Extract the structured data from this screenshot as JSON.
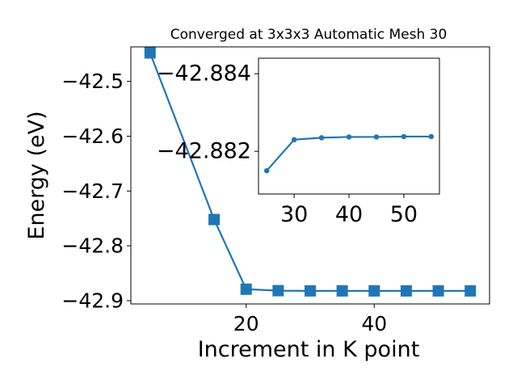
{
  "chart_data": [
    {
      "type": "line",
      "title": "Converged at 3x3x3 Automatic Mesh 30",
      "xlabel": "Increment in K point",
      "ylabel": "Energy (eV)",
      "xlim": [
        2,
        58
      ],
      "ylim": [
        -42.906,
        -42.437
      ],
      "x_ticks": [
        20,
        40
      ],
      "x_tick_labels": [
        "20",
        "40"
      ],
      "y_ticks": [
        -42.5,
        -42.6,
        -42.7,
        -42.8,
        -42.9
      ],
      "y_tick_labels": [
        "−42.5",
        "−42.6",
        "−42.7",
        "−42.8",
        "−42.9"
      ],
      "grid": false,
      "marker": "square",
      "color": "#1f77b4",
      "series": [
        {
          "x": [
            5,
            15,
            20,
            25,
            30,
            35,
            40,
            45,
            50,
            55
          ],
          "values": [
            -42.448,
            -42.752,
            -42.8791,
            -42.8818,
            -42.8822,
            -42.8822,
            -42.8822,
            -42.8822,
            -42.8822,
            -42.8822
          ]
        }
      ]
    },
    {
      "type": "line",
      "title": "",
      "xlabel": "",
      "ylabel": "",
      "xlim": [
        23.5,
        56.5
      ],
      "ylim": [
        -42.8809,
        -42.8844
      ],
      "x_ticks": [
        30,
        40,
        50
      ],
      "x_tick_labels": [
        "30",
        "40",
        "50"
      ],
      "y_ticks": [
        -42.884,
        -42.882
      ],
      "y_tick_labels": [
        "−42.884",
        "−42.882"
      ],
      "grid": false,
      "marker": "circle",
      "color": "#1f77b4",
      "series": [
        {
          "x": [
            25,
            30,
            35,
            40,
            45,
            50,
            55
          ],
          "values": [
            -42.8815,
            -42.8823,
            -42.88235,
            -42.88237,
            -42.88237,
            -42.88238,
            -42.88238
          ]
        }
      ]
    }
  ]
}
